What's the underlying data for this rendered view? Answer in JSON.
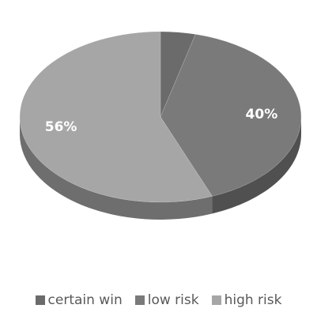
{
  "chart_data": {
    "type": "pie",
    "title": "",
    "categories": [
      "certain win",
      "low risk",
      "high risk"
    ],
    "values": [
      4,
      40,
      56
    ],
    "data_labels": [
      "",
      "40%",
      "56%"
    ],
    "colors": [
      "#6b6b6b",
      "#7a7a7a",
      "#a6a6a6"
    ],
    "side_colors": [
      "#4a4a4a",
      "#505050",
      "#6e6e6e"
    ],
    "style": "3d-pie",
    "legend_position": "bottom"
  }
}
